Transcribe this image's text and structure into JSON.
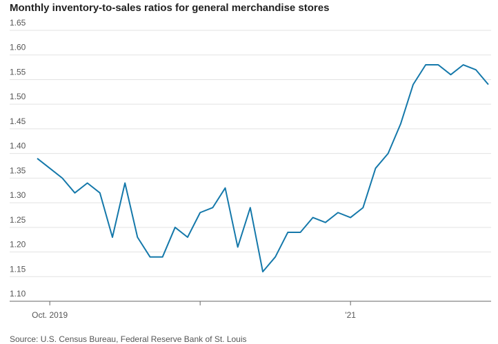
{
  "chart_data": {
    "type": "line",
    "title": "Monthly inventory-to-sales ratios for general merchandise stores",
    "source": "Source: U.S. Census Bureau, Federal Reserve Bank of St. Louis",
    "categories": [
      null,
      "Oct. 2019",
      null,
      null,
      null,
      null,
      null,
      null,
      null,
      null,
      null,
      null,
      null,
      null,
      null,
      null,
      null,
      null,
      null,
      null,
      null,
      null,
      null,
      null,
      null,
      "'21",
      null,
      null,
      null,
      null,
      null,
      null,
      null,
      null,
      null,
      null,
      null
    ],
    "series": [
      {
        "name": "Inventory-to-sales ratio",
        "color": "#1478aa",
        "values": [
          1.39,
          1.37,
          1.35,
          1.32,
          1.34,
          1.32,
          1.23,
          1.34,
          1.23,
          1.19,
          1.19,
          1.25,
          1.23,
          1.28,
          1.29,
          1.33,
          1.21,
          1.29,
          1.16,
          1.19,
          1.24,
          1.24,
          1.27,
          1.26,
          1.28,
          1.27,
          1.29,
          1.37,
          1.4,
          1.46,
          1.54,
          1.58,
          1.58,
          1.56,
          1.58,
          1.57,
          1.54
        ]
      }
    ],
    "ylim": [
      1.1,
      1.65
    ],
    "yticks": [
      {
        "value": 1.1,
        "label": "1.10"
      },
      1.15,
      {
        "value": 1.2,
        "label": "1.20"
      },
      1.25,
      {
        "value": 1.3,
        "label": "1.30"
      },
      1.35,
      {
        "value": 1.4,
        "label": "1.40"
      },
      1.45,
      {
        "value": 1.5,
        "label": "1.50"
      },
      1.55,
      {
        "value": 1.6,
        "label": "1.60"
      },
      1.65
    ],
    "grid": true
  }
}
